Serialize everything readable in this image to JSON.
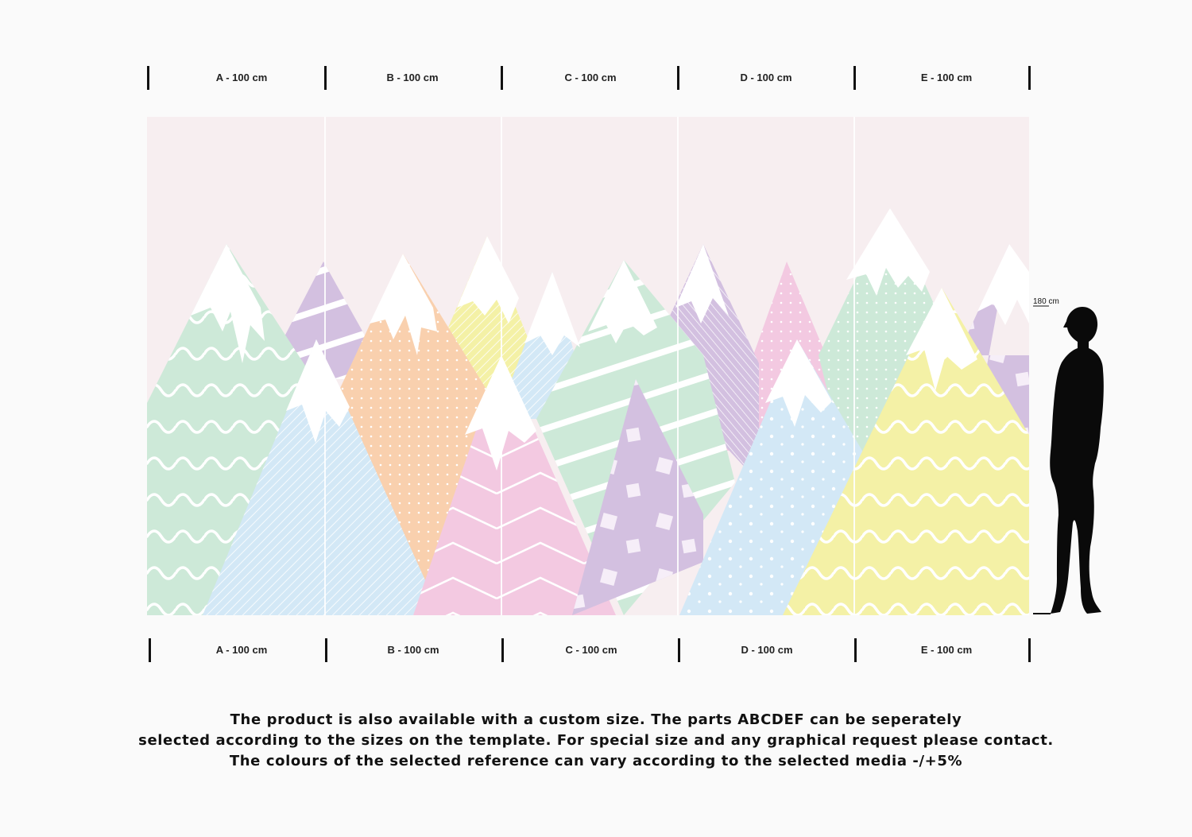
{
  "top_ruler": [
    "A - 100 cm",
    "B - 100 cm",
    "C - 100 cm",
    "D - 100 cm",
    "E - 100 cm"
  ],
  "bottom_ruler": [
    "A - 100 cm",
    "B - 100 cm",
    "C - 100 cm",
    "D - 100 cm",
    "E - 100 cm"
  ],
  "height_label": "180 cm",
  "colors": {
    "sky": "#f7eef0",
    "snow": "#ffffff",
    "green": "#cde9d8",
    "purple": "#d3c0e0",
    "orange": "#f9d0ae",
    "yellow": "#f4f1a6",
    "blue": "#d3e8f6",
    "pink": "#f3c9e1",
    "silhouette": "#0a0a0a"
  },
  "notice": {
    "line1": "The product is also available with a custom size. The parts ABCDEF can be seperately",
    "line2": "selected according to the sizes on the template. For special size and any graphical request please contact.",
    "line3": "The colours of the selected reference can vary according to the selected media -/+5%"
  }
}
